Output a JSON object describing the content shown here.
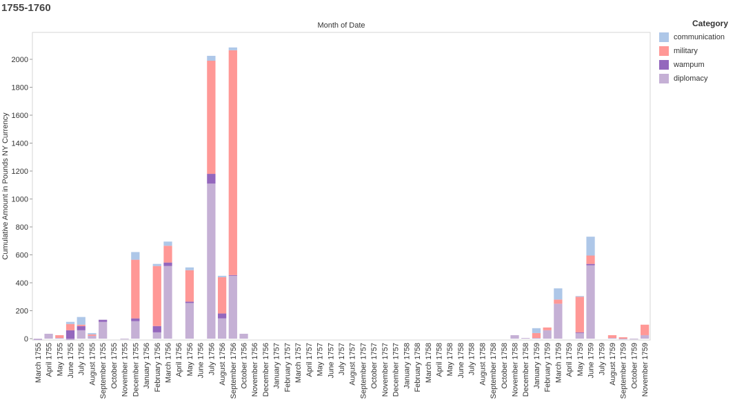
{
  "page": {
    "title": "1755-1760"
  },
  "chart_data": {
    "type": "bar",
    "stacked": true,
    "title": "",
    "top_axis_label": "Month of Date",
    "xlabel": "",
    "ylabel": "Cumulative Amount in Pounds NY Currency",
    "ylim": [
      -30,
      2140
    ],
    "yticks": [
      0,
      200,
      400,
      600,
      800,
      1000,
      1200,
      1400,
      1600,
      1800,
      2000
    ],
    "grid": false,
    "legend_position": "right",
    "legend_title": "Category",
    "legend": [
      {
        "name": "communication",
        "color": "#aec7e8"
      },
      {
        "name": "military",
        "color": "#ff9896"
      },
      {
        "name": "wampum",
        "color": "#9467bd"
      },
      {
        "name": "diplomacy",
        "color": "#c5b0d5"
      }
    ],
    "categories": [
      "March 1755",
      "April 1755",
      "May 1755",
      "June 1755",
      "July 1755",
      "August 1755",
      "September 1755",
      "October 1755",
      "November 1755",
      "December 1755",
      "January 1756",
      "February 1756",
      "March 1756",
      "April 1756",
      "May 1756",
      "June 1756",
      "July 1756",
      "August 1756",
      "September 1756",
      "October 1756",
      "November 1756",
      "December 1756",
      "January 1757",
      "February 1757",
      "March 1757",
      "April 1757",
      "May 1757",
      "June 1757",
      "July 1757",
      "August 1757",
      "September 1757",
      "October 1757",
      "November 1757",
      "December 1757",
      "January 1758",
      "February 1758",
      "March 1758",
      "April 1758",
      "May 1758",
      "June 1758",
      "July 1758",
      "August 1758",
      "September 1758",
      "October 1758",
      "November 1758",
      "December 1758",
      "January 1759",
      "February 1759",
      "March 1759",
      "April 1759",
      "May 1759",
      "June 1759",
      "July 1759",
      "August 1759",
      "September 1759",
      "October 1759",
      "November 1759"
    ],
    "series": [
      {
        "name": "diplomacy",
        "color": "#c5b0d5",
        "values": [
          -10,
          35,
          5,
          -10,
          60,
          20,
          120,
          0,
          -5,
          125,
          0,
          45,
          520,
          0,
          255,
          0,
          1110,
          145,
          450,
          35,
          0,
          0,
          0,
          0,
          0,
          0,
          0,
          0,
          0,
          0,
          0,
          0,
          0,
          0,
          0,
          0,
          0,
          0,
          0,
          0,
          0,
          0,
          0,
          0,
          25,
          5,
          5,
          60,
          250,
          0,
          40,
          525,
          0,
          5,
          -5,
          -5,
          25
        ]
      },
      {
        "name": "wampum",
        "color": "#9467bd",
        "values": [
          0,
          0,
          0,
          60,
          30,
          0,
          15,
          0,
          0,
          20,
          0,
          45,
          25,
          0,
          10,
          0,
          70,
          35,
          5,
          0,
          0,
          0,
          0,
          0,
          0,
          0,
          0,
          0,
          0,
          0,
          0,
          0,
          0,
          0,
          0,
          0,
          0,
          0,
          0,
          0,
          0,
          0,
          0,
          0,
          0,
          0,
          0,
          0,
          0,
          0,
          5,
          10,
          0,
          0,
          0,
          0,
          0
        ]
      },
      {
        "name": "military",
        "color": "#ff9896",
        "values": [
          0,
          0,
          20,
          45,
          10,
          10,
          0,
          0,
          0,
          420,
          0,
          430,
          120,
          0,
          225,
          0,
          810,
          260,
          1610,
          0,
          0,
          0,
          0,
          0,
          0,
          0,
          0,
          0,
          0,
          0,
          0,
          0,
          0,
          0,
          0,
          0,
          0,
          0,
          0,
          0,
          0,
          0,
          0,
          0,
          0,
          0,
          35,
          20,
          30,
          0,
          255,
          60,
          0,
          20,
          10,
          0,
          75
        ]
      },
      {
        "name": "communication",
        "color": "#aec7e8",
        "values": [
          0,
          0,
          0,
          15,
          55,
          10,
          0,
          0,
          0,
          55,
          0,
          15,
          30,
          0,
          20,
          0,
          35,
          10,
          20,
          0,
          0,
          0,
          0,
          0,
          0,
          0,
          0,
          0,
          0,
          0,
          0,
          0,
          0,
          0,
          0,
          0,
          0,
          0,
          0,
          0,
          0,
          0,
          0,
          0,
          0,
          0,
          35,
          0,
          80,
          0,
          5,
          135,
          0,
          0,
          0,
          0,
          0
        ]
      }
    ]
  }
}
